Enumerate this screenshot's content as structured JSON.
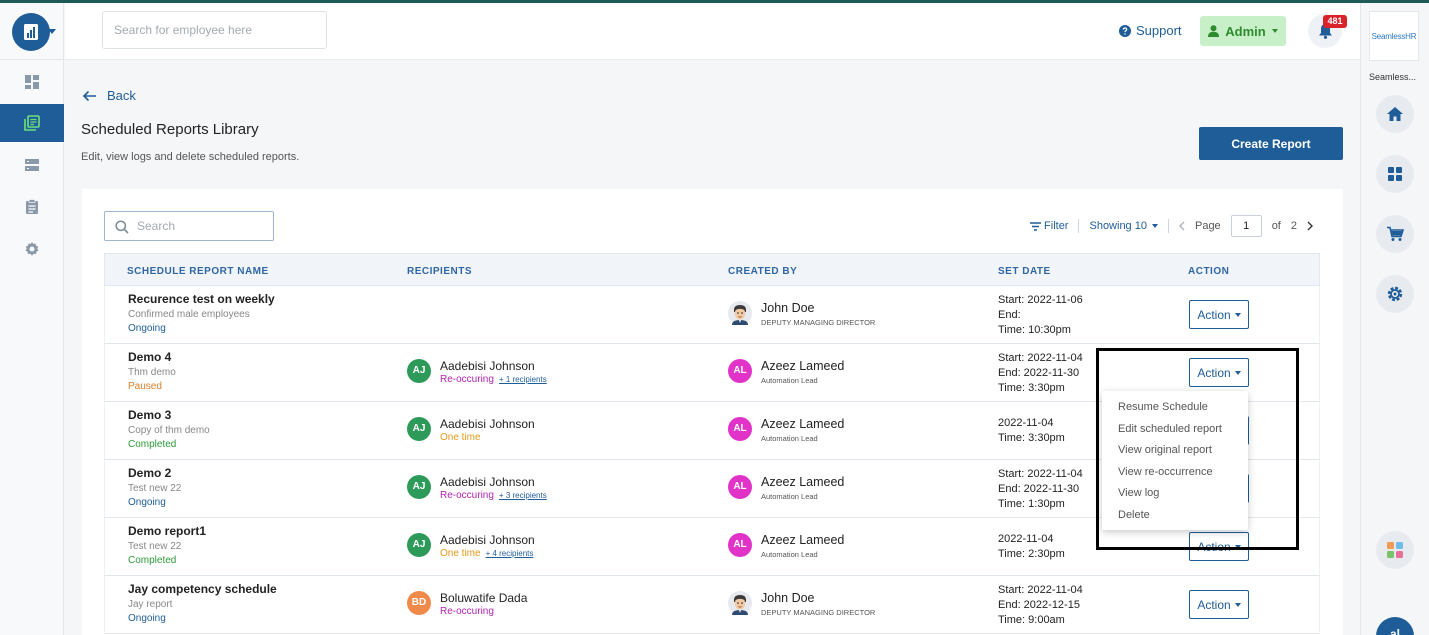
{
  "topbar": {
    "search_placeholder": "Search for employee here",
    "support_label": "Support",
    "admin_label": "Admin",
    "notification_count": "481"
  },
  "right_rail": {
    "brand_logo_text": "SeamlessHR",
    "brand_caption": "Seamless...",
    "user_initials": "al"
  },
  "page": {
    "back_label": "Back",
    "title": "Scheduled Reports Library",
    "subtitle": "Edit, view logs and delete scheduled reports.",
    "create_button": "Create Report"
  },
  "table_toolbar": {
    "search_placeholder": "Search",
    "filter_label": "Filter",
    "showing_label": "Showing 10",
    "page_label": "Page",
    "page_value": "1",
    "page_of": "of",
    "page_total": "2"
  },
  "columns": [
    "SCHEDULE REPORT NAME",
    "RECIPIENTS",
    "CREATED BY",
    "SET DATE",
    "ACTION"
  ],
  "action_label": "Action",
  "rows": [
    {
      "name": "Recurence test on weekly",
      "subtitle": "Confirmed male employees",
      "status": "Ongoing",
      "recipient_initials": "",
      "recipient_name": "",
      "recipient_type": "",
      "recipient_more": "",
      "creator_name": "John Doe",
      "creator_role": "DEPUTY MANAGING DIRECTOR",
      "creator_initials": "",
      "date_1": "Start: 2022-11-06",
      "date_2": "End:",
      "date_3": "Time: 10:30pm"
    },
    {
      "name": "Demo 4",
      "subtitle": "Thm demo",
      "status": "Paused",
      "recipient_initials": "AJ",
      "recipient_name": "Aadebisi Johnson",
      "recipient_type": "Re-occuring",
      "recipient_more": "+ 1 recipients",
      "creator_name": "Azeez Lameed",
      "creator_role": "Automation Lead",
      "creator_initials": "AL",
      "date_1": "Start: 2022-11-04",
      "date_2": "End: 2022-11-30",
      "date_3": "Time: 3:30pm"
    },
    {
      "name": "Demo 3",
      "subtitle": "Copy of thm demo",
      "status": "Completed",
      "recipient_initials": "AJ",
      "recipient_name": "Aadebisi Johnson",
      "recipient_type": "One time",
      "recipient_more": "",
      "creator_name": "Azeez Lameed",
      "creator_role": "Automation Lead",
      "creator_initials": "AL",
      "date_1": "2022-11-04",
      "date_2": "Time: 3:30pm",
      "date_3": ""
    },
    {
      "name": "Demo 2",
      "subtitle": "Test new 22",
      "status": "Ongoing",
      "recipient_initials": "AJ",
      "recipient_name": "Aadebisi Johnson",
      "recipient_type": "Re-occuring",
      "recipient_more": "+ 3 recipients",
      "creator_name": "Azeez Lameed",
      "creator_role": "Automation Lead",
      "creator_initials": "AL",
      "date_1": "Start: 2022-11-04",
      "date_2": "End: 2022-11-30",
      "date_3": "Time: 1:30pm"
    },
    {
      "name": "Demo report1",
      "subtitle": "Test new 22",
      "status": "Completed",
      "recipient_initials": "AJ",
      "recipient_name": "Aadebisi Johnson",
      "recipient_type": "One time",
      "recipient_more": "+ 4 recipients",
      "creator_name": "Azeez Lameed",
      "creator_role": "Automation Lead",
      "creator_initials": "AL",
      "date_1": "2022-11-04",
      "date_2": "Time: 2:30pm",
      "date_3": ""
    },
    {
      "name": "Jay competency schedule",
      "subtitle": "Jay report",
      "status": "Ongoing",
      "recipient_initials": "BD",
      "recipient_name": "Boluwatife Dada",
      "recipient_type": "Re-occuring",
      "recipient_more": "",
      "creator_name": "John Doe",
      "creator_role": "DEPUTY MANAGING DIRECTOR",
      "creator_initials": "",
      "date_1": "Start: 2022-11-04",
      "date_2": "End: 2022-12-15",
      "date_3": "Time: 9:00am"
    }
  ],
  "dropdown": {
    "items": [
      "Resume Schedule",
      "Edit scheduled report",
      "View original report",
      "View re-occurrence",
      "View log",
      "Delete"
    ]
  },
  "colors": {
    "primary": "#1f5d99",
    "ongoing": "#1f5d99",
    "paused": "#d97e27",
    "completed": "#2e9a3a",
    "reoccurring": "#b023b0",
    "one_time": "#e39a1a",
    "avatar_aj": "#2e9a5a",
    "avatar_al": "#e233c9",
    "avatar_bd": "#f08a4a",
    "notification": "#d9222a"
  }
}
